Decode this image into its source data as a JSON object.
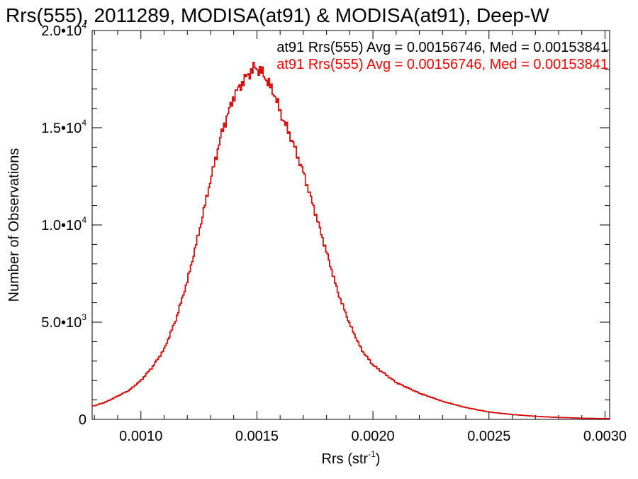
{
  "chart_data": {
    "type": "histogram",
    "title": "Rrs(555), 2011289, MODISA(at91) & MODISA(at91), Deep-W",
    "xlabel_base": "Rrs (str",
    "xlabel_exp": "-1",
    "xlabel_close": ")",
    "ylabel": "Number of Observations",
    "xlim": [
      0.00079,
      0.00302
    ],
    "ylim": [
      0,
      20000
    ],
    "xticks": [
      {
        "value": 0.001,
        "label": "0.0010"
      },
      {
        "value": 0.0015,
        "label": "0.0015"
      },
      {
        "value": 0.002,
        "label": "0.0020"
      },
      {
        "value": 0.0025,
        "label": "0.0025"
      },
      {
        "value": 0.003,
        "label": "0.0030"
      }
    ],
    "yticks": [
      {
        "value": 0,
        "mant": "0",
        "exp": ""
      },
      {
        "value": 5000,
        "mant": "5.0•10",
        "exp": "3"
      },
      {
        "value": 10000,
        "mant": "1.0•10",
        "exp": "4"
      },
      {
        "value": 15000,
        "mant": "1.5•10",
        "exp": "4"
      },
      {
        "value": 20000,
        "mant": "2.0•10",
        "exp": "4"
      }
    ],
    "annotations": [
      {
        "text": "at91 Rrs(555) Avg = 0.00156746, Med = 0.00153841",
        "color": "#000000"
      },
      {
        "text": "at91 Rrs(555) Avg = 0.00156746, Med = 0.00153841",
        "color": "#ff0000"
      }
    ],
    "series": [
      {
        "color": "#000000"
      },
      {
        "color": "#ff0000"
      }
    ],
    "x": [
      0.0008,
      0.00085,
      0.0009,
      0.00095,
      0.001,
      0.00105,
      0.0011,
      0.00115,
      0.0012,
      0.00125,
      0.0013,
      0.00135,
      0.0014,
      0.00143,
      0.00146,
      0.00149,
      0.00152,
      0.00155,
      0.00158,
      0.0016,
      0.00165,
      0.0017,
      0.00175,
      0.0018,
      0.00185,
      0.0019,
      0.00195,
      0.002,
      0.0021,
      0.0022,
      0.0023,
      0.0024,
      0.0025,
      0.0026,
      0.0027,
      0.0028,
      0.0029,
      0.003
    ],
    "y": [
      700,
      900,
      1200,
      1500,
      2000,
      2700,
      3600,
      5100,
      7100,
      9600,
      12300,
      14800,
      16600,
      17200,
      17700,
      18100,
      17900,
      17300,
      16600,
      15800,
      14400,
      12700,
      10700,
      8600,
      6500,
      4900,
      3600,
      2800,
      1900,
      1350,
      930,
      610,
      380,
      250,
      160,
      100,
      60,
      40
    ]
  }
}
